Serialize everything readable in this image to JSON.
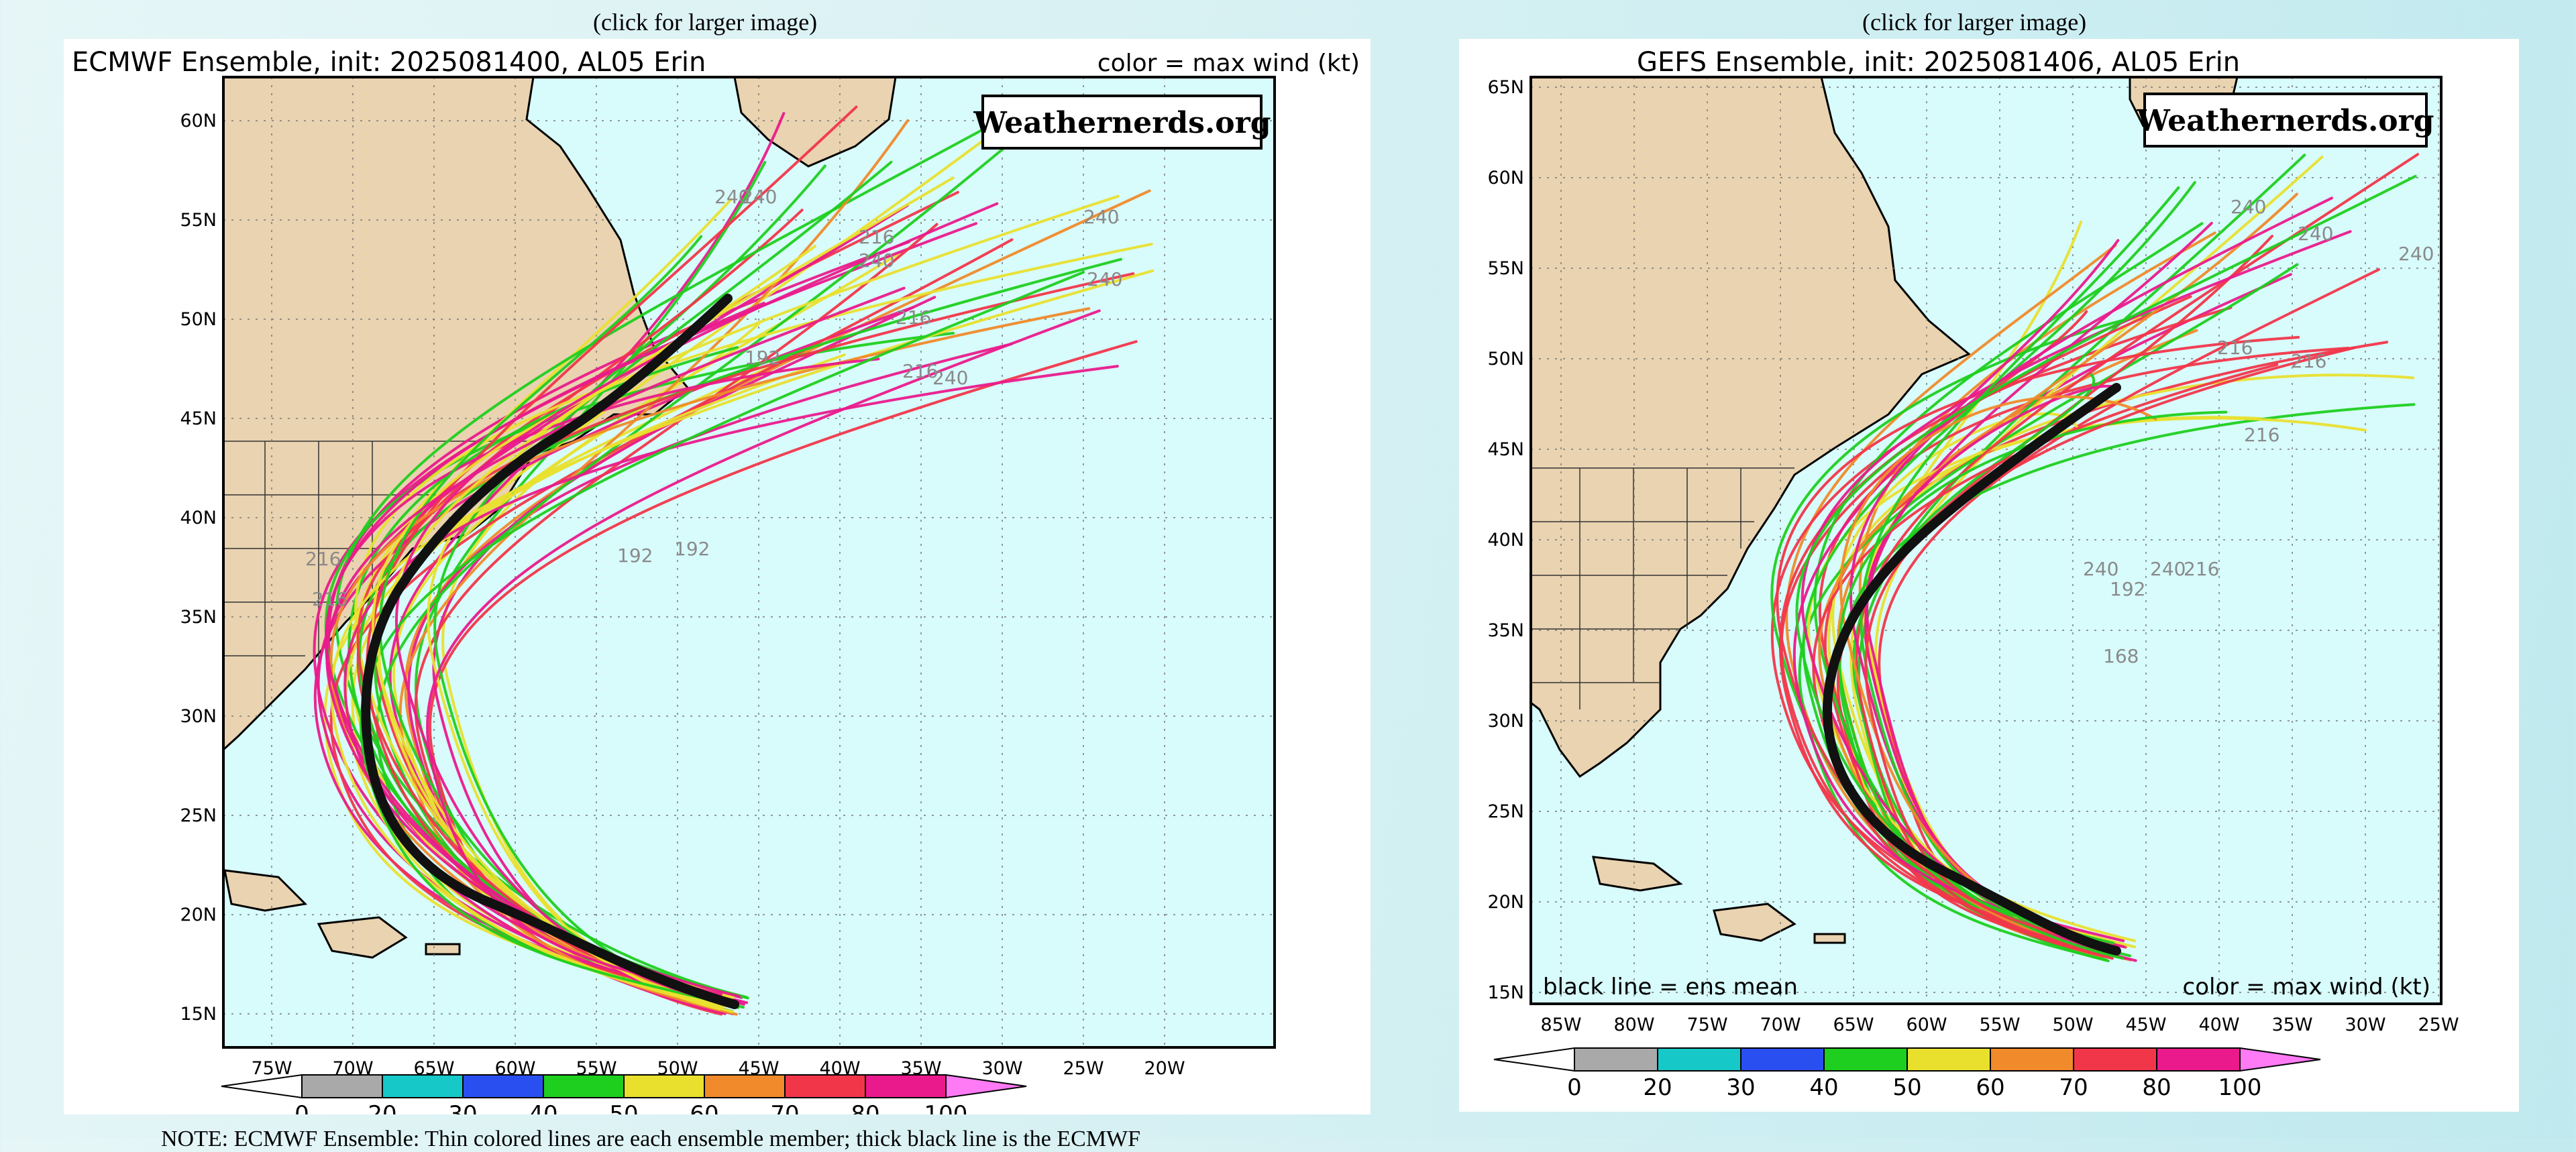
{
  "captions": {
    "left": "(click for larger image)",
    "right": "(click for larger image)"
  },
  "colors": {
    "ocean": "#d8fbfc",
    "land": "#e9d3b0",
    "mean_track": "#111111",
    "bins": [
      "#a9a9a9",
      "#16c8c8",
      "#2a4ff0",
      "#1fcf1f",
      "#e9e02e",
      "#f08a2a",
      "#f2364a",
      "#ea1a8c",
      "#ff7af5"
    ]
  },
  "maps": {
    "ecmwf": {
      "title": "ECMWF Ensemble, init: 2025081400, AL05 Erin",
      "legend_title": "color = max wind (kt)",
      "brand": "Weathernerds.org",
      "lat_labels": [
        "60N",
        "55N",
        "50N",
        "45N",
        "40N",
        "35N",
        "30N",
        "25N",
        "20N",
        "15N"
      ],
      "lon_labels": [
        "75W",
        "70W",
        "65W",
        "60W",
        "55W",
        "50W",
        "45W",
        "40W",
        "35W",
        "30W",
        "25W",
        "20W"
      ],
      "colorbar_labels": [
        "0",
        "20",
        "30",
        "40",
        "50",
        "60",
        "70",
        "80",
        "100"
      ],
      "hour_labels": [
        "240",
        "240",
        "240",
        "240",
        "240",
        "216",
        "216",
        "216",
        "216",
        "216",
        "192",
        "192",
        "192",
        "240"
      ]
    },
    "gefs": {
      "title": "GEFS Ensemble, init: 2025081406, AL05 Erin",
      "legend_title": "color = max wind (kt)",
      "mean_note": "black line = ens mean",
      "brand": "Weathernerds.org",
      "lat_labels": [
        "65N",
        "60N",
        "55N",
        "50N",
        "45N",
        "40N",
        "35N",
        "30N",
        "25N",
        "20N",
        "15N"
      ],
      "lon_labels": [
        "85W",
        "80W",
        "75W",
        "70W",
        "65W",
        "60W",
        "55W",
        "50W",
        "45W",
        "40W",
        "35W",
        "30W",
        "25W"
      ],
      "colorbar_labels": [
        "0",
        "20",
        "30",
        "40",
        "50",
        "60",
        "70",
        "80",
        "100"
      ],
      "hour_labels": [
        "240",
        "240",
        "240",
        "216",
        "216",
        "216",
        "240",
        "240",
        "216",
        "192",
        "168"
      ]
    }
  },
  "note": "NOTE: ECMWF Ensemble: Thin colored lines are each ensemble member; thick black line is the ECMWF"
}
